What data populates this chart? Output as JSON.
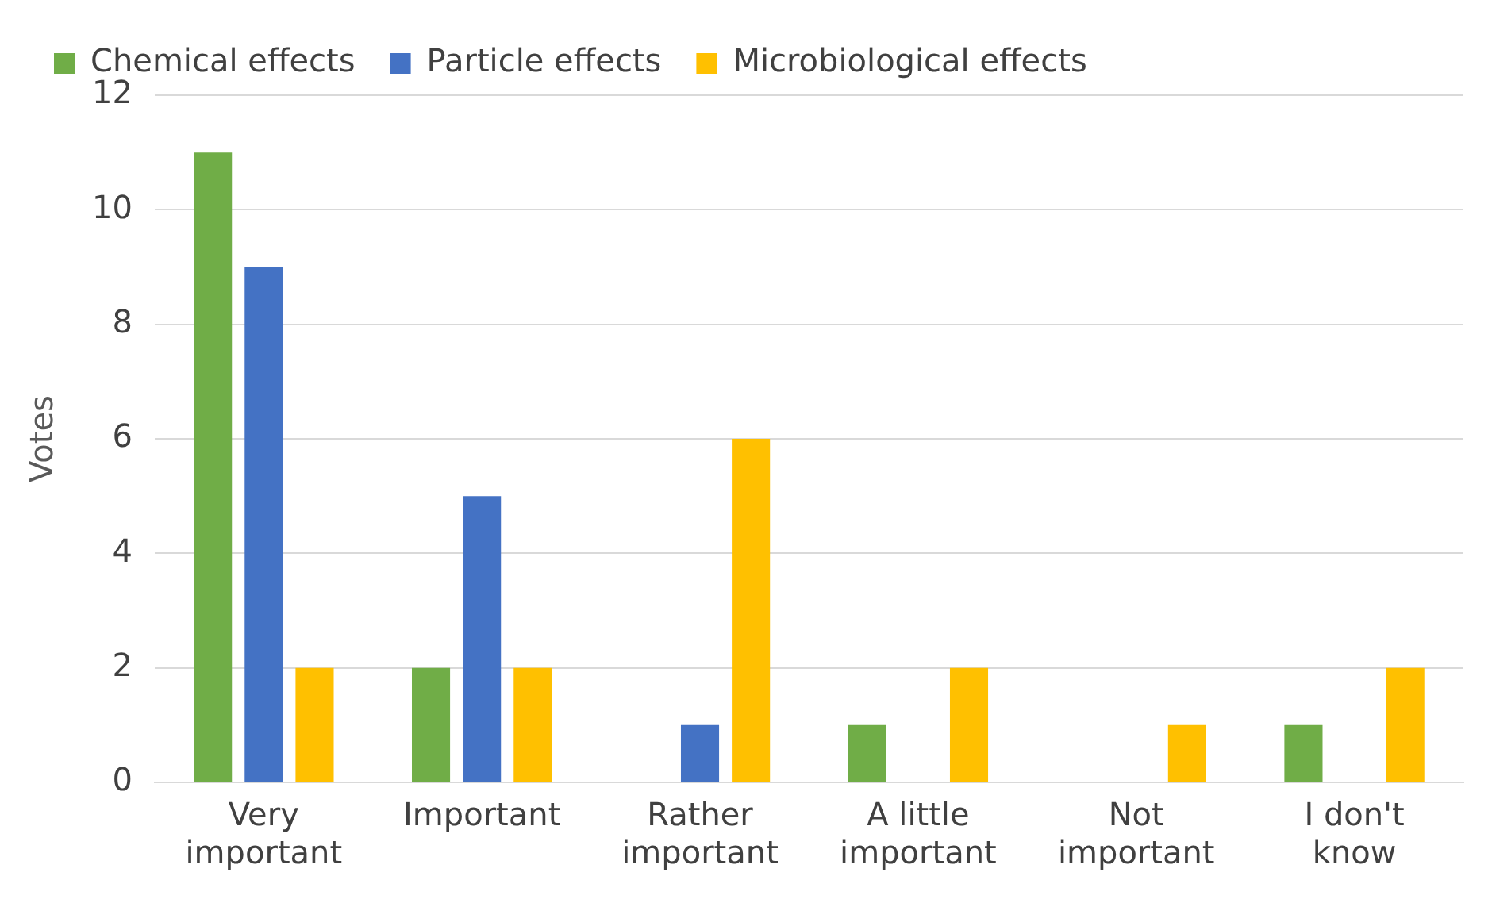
{
  "chart_data": {
    "type": "bar",
    "ylabel": "Votes",
    "categories": [
      "Very important",
      "Important",
      "Rather important",
      "A little important",
      "Not important",
      "I don't know"
    ],
    "series": [
      {
        "name": "Chemical effects",
        "color": "#70ad47",
        "values": [
          11,
          2,
          0,
          1,
          0,
          1
        ]
      },
      {
        "name": "Particle effects",
        "color": "#4472c4",
        "values": [
          9,
          5,
          1,
          0,
          0,
          0
        ]
      },
      {
        "name": "Microbiological effects",
        "color": "#ffc000",
        "values": [
          2,
          2,
          6,
          2,
          1,
          2
        ]
      }
    ],
    "ylim": [
      0,
      12
    ],
    "yticks": [
      0,
      2,
      4,
      6,
      8,
      10,
      12
    ],
    "grid": "y",
    "legend": "top"
  }
}
